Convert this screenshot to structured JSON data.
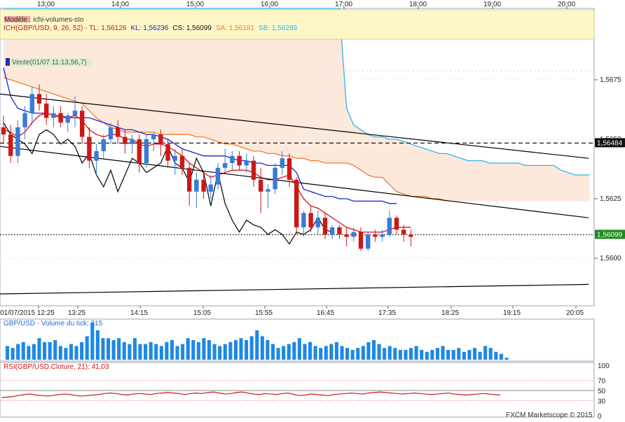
{
  "chart_data": {
    "type": "candlestick",
    "symbol": "GBP/USD",
    "top_time_labels": [
      "13:00",
      "14:00",
      "15:00",
      "16:00",
      "17:00",
      "18:00",
      "19:00",
      "20:00"
    ],
    "bottom_time_labels": [
      "01/07/2015 12:25",
      "13:25",
      "14:15",
      "15:05",
      "15:55",
      "16:45",
      "17:35",
      "18:25",
      "19:15",
      "20:05"
    ],
    "y_ticks": [
      "1,5675",
      "1,5650",
      "1,5625",
      "1,5600"
    ],
    "ylim": [
      1.558,
      1.5705
    ],
    "price_tags": {
      "level_high": "1,56484",
      "level_close": "1,56099"
    },
    "legend": {
      "model": "Modèle : ichi-volumes-sto",
      "ichi_prefix": "ICH(GBP/USD, 9, 26, 52) - ",
      "tl": "TL: 1,56126",
      "kl": "KL: 1,56236",
      "cs": "CS: 1,56099",
      "sa": "SA: 1,56181",
      "sb": "SB: 1,56289"
    },
    "vente_label": "Vente(01/07 11:13,56,7)",
    "candles": [
      {
        "o": 1.5655,
        "h": 1.566,
        "l": 1.5648,
        "c": 1.5652
      },
      {
        "o": 1.5652,
        "h": 1.5656,
        "l": 1.564,
        "c": 1.5643
      },
      {
        "o": 1.5643,
        "h": 1.5658,
        "l": 1.564,
        "c": 1.5655
      },
      {
        "o": 1.5655,
        "h": 1.5664,
        "l": 1.565,
        "c": 1.5661
      },
      {
        "o": 1.5661,
        "h": 1.5672,
        "l": 1.5656,
        "c": 1.5669
      },
      {
        "o": 1.5669,
        "h": 1.5673,
        "l": 1.5662,
        "c": 1.5665
      },
      {
        "o": 1.5665,
        "h": 1.5669,
        "l": 1.5656,
        "c": 1.5659
      },
      {
        "o": 1.5659,
        "h": 1.5664,
        "l": 1.5655,
        "c": 1.5661
      },
      {
        "o": 1.5661,
        "h": 1.5664,
        "l": 1.5655,
        "c": 1.5657
      },
      {
        "o": 1.5657,
        "h": 1.5661,
        "l": 1.5653,
        "c": 1.566
      },
      {
        "o": 1.566,
        "h": 1.5668,
        "l": 1.5655,
        "c": 1.5662
      },
      {
        "o": 1.5662,
        "h": 1.5664,
        "l": 1.5648,
        "c": 1.5651
      },
      {
        "o": 1.5651,
        "h": 1.5655,
        "l": 1.5638,
        "c": 1.5641
      },
      {
        "o": 1.5641,
        "h": 1.5648,
        "l": 1.5635,
        "c": 1.5645
      },
      {
        "o": 1.5645,
        "h": 1.5652,
        "l": 1.5642,
        "c": 1.565
      },
      {
        "o": 1.565,
        "h": 1.5657,
        "l": 1.5648,
        "c": 1.5655
      },
      {
        "o": 1.5655,
        "h": 1.5658,
        "l": 1.5648,
        "c": 1.5651
      },
      {
        "o": 1.5651,
        "h": 1.5654,
        "l": 1.5644,
        "c": 1.5648
      },
      {
        "o": 1.5648,
        "h": 1.5652,
        "l": 1.5644,
        "c": 1.565
      },
      {
        "o": 1.565,
        "h": 1.5652,
        "l": 1.5636,
        "c": 1.564
      },
      {
        "o": 1.564,
        "h": 1.5652,
        "l": 1.5638,
        "c": 1.565
      },
      {
        "o": 1.565,
        "h": 1.5653,
        "l": 1.5645,
        "c": 1.5652
      },
      {
        "o": 1.5652,
        "h": 1.5654,
        "l": 1.5643,
        "c": 1.5648
      },
      {
        "o": 1.5648,
        "h": 1.565,
        "l": 1.5638,
        "c": 1.5641
      },
      {
        "o": 1.5641,
        "h": 1.5646,
        "l": 1.5635,
        "c": 1.5643
      },
      {
        "o": 1.5643,
        "h": 1.5646,
        "l": 1.5635,
        "c": 1.5638
      },
      {
        "o": 1.5638,
        "h": 1.564,
        "l": 1.5622,
        "c": 1.5628
      },
      {
        "o": 1.5628,
        "h": 1.5636,
        "l": 1.5621,
        "c": 1.5633
      },
      {
        "o": 1.5633,
        "h": 1.5636,
        "l": 1.5625,
        "c": 1.5628
      },
      {
        "o": 1.5628,
        "h": 1.5635,
        "l": 1.5625,
        "c": 1.5631
      },
      {
        "o": 1.5631,
        "h": 1.564,
        "l": 1.5629,
        "c": 1.5638
      },
      {
        "o": 1.5638,
        "h": 1.5646,
        "l": 1.5636,
        "c": 1.564
      },
      {
        "o": 1.564,
        "h": 1.5645,
        "l": 1.5637,
        "c": 1.5643
      },
      {
        "o": 1.5643,
        "h": 1.5645,
        "l": 1.5637,
        "c": 1.5639
      },
      {
        "o": 1.5639,
        "h": 1.5644,
        "l": 1.5636,
        "c": 1.5641
      },
      {
        "o": 1.5641,
        "h": 1.5643,
        "l": 1.563,
        "c": 1.5633
      },
      {
        "o": 1.5633,
        "h": 1.5638,
        "l": 1.5619,
        "c": 1.5628
      },
      {
        "o": 1.5628,
        "h": 1.5631,
        "l": 1.5621,
        "c": 1.5629
      },
      {
        "o": 1.5629,
        "h": 1.564,
        "l": 1.5627,
        "c": 1.5638
      },
      {
        "o": 1.5638,
        "h": 1.5645,
        "l": 1.5635,
        "c": 1.5642
      },
      {
        "o": 1.5642,
        "h": 1.5644,
        "l": 1.563,
        "c": 1.5633
      },
      {
        "o": 1.5633,
        "h": 1.5634,
        "l": 1.561,
        "c": 1.5613
      },
      {
        "o": 1.5613,
        "h": 1.562,
        "l": 1.5609,
        "c": 1.5619
      },
      {
        "o": 1.5619,
        "h": 1.5622,
        "l": 1.5611,
        "c": 1.5613
      },
      {
        "o": 1.5613,
        "h": 1.562,
        "l": 1.561,
        "c": 1.5617
      },
      {
        "o": 1.5617,
        "h": 1.5619,
        "l": 1.5608,
        "c": 1.561
      },
      {
        "o": 1.561,
        "h": 1.5614,
        "l": 1.5608,
        "c": 1.5613
      },
      {
        "o": 1.5613,
        "h": 1.5614,
        "l": 1.5608,
        "c": 1.561
      },
      {
        "o": 1.561,
        "h": 1.5613,
        "l": 1.5605,
        "c": 1.5609
      },
      {
        "o": 1.5609,
        "h": 1.5613,
        "l": 1.5607,
        "c": 1.5611
      },
      {
        "o": 1.5611,
        "h": 1.5613,
        "l": 1.5603,
        "c": 1.5604
      },
      {
        "o": 1.5604,
        "h": 1.5611,
        "l": 1.5603,
        "c": 1.561
      },
      {
        "o": 1.561,
        "h": 1.5612,
        "l": 1.5607,
        "c": 1.5609
      },
      {
        "o": 1.5609,
        "h": 1.5612,
        "l": 1.5607,
        "c": 1.561
      },
      {
        "o": 1.561,
        "h": 1.562,
        "l": 1.5609,
        "c": 1.5617
      },
      {
        "o": 1.5617,
        "h": 1.5618,
        "l": 1.561,
        "c": 1.5612
      },
      {
        "o": 1.5612,
        "h": 1.5614,
        "l": 1.5607,
        "c": 1.561
      },
      {
        "o": 1.561,
        "h": 1.5612,
        "l": 1.5605,
        "c": 1.5609
      }
    ],
    "tenkan": [
      1.5654,
      1.5653,
      1.5651,
      1.5653,
      1.5657,
      1.566,
      1.5661,
      1.566,
      1.5659,
      1.5659,
      1.566,
      1.5658,
      1.5654,
      1.5652,
      1.5651,
      1.5652,
      1.5652,
      1.565,
      1.565,
      1.5648,
      1.5647,
      1.5648,
      1.5648,
      1.5647,
      1.5645,
      1.5643,
      1.564,
      1.5638,
      1.5636,
      1.5634,
      1.5635,
      1.5636,
      1.5637,
      1.5637,
      1.5637,
      1.5636,
      1.5634,
      1.5633,
      1.5633,
      1.5634,
      1.5635,
      1.563,
      1.5625,
      1.5622,
      1.5621,
      1.5619,
      1.5617,
      1.5615,
      1.5613,
      1.5612,
      1.5611,
      1.5611,
      1.5611,
      1.5611,
      1.5612,
      1.5613,
      1.5613,
      1.5613
    ],
    "kijun": [
      1.568,
      1.5668,
      1.5663,
      1.5662,
      1.5661,
      1.5661,
      1.5661,
      1.566,
      1.566,
      1.5659,
      1.5659,
      1.5659,
      1.5659,
      1.5658,
      1.5657,
      1.5656,
      1.5655,
      1.5654,
      1.5654,
      1.5653,
      1.5652,
      1.5652,
      1.5651,
      1.565,
      1.5648,
      1.5646,
      1.5645,
      1.5644,
      1.5643,
      1.5643,
      1.5643,
      1.5643,
      1.5642,
      1.5641,
      1.5641,
      1.564,
      1.564,
      1.5639,
      1.5639,
      1.5639,
      1.5639,
      1.5636,
      1.5629,
      1.5628,
      1.5627,
      1.5626,
      1.5626,
      1.5625,
      1.5625,
      1.5624,
      1.5624,
      1.5624,
      1.5624,
      1.5624,
      1.5623,
      1.5623
    ],
    "chikou": [
      1.5657,
      1.5652,
      1.565,
      1.5648,
      1.5644,
      1.5652,
      1.5654,
      1.5652,
      1.5648,
      1.565,
      1.5647,
      1.564,
      1.5644,
      1.5635,
      1.563,
      1.5637,
      1.5628,
      1.5635,
      1.5642,
      1.564,
      1.5636,
      1.5638,
      1.564,
      1.5647,
      1.564,
      1.5638,
      1.5632,
      1.5642,
      1.5636,
      1.5622,
      1.5636,
      1.5623,
      1.5616,
      1.5611,
      1.5616,
      1.5614,
      1.5613,
      1.561,
      1.5612,
      1.561,
      1.5606,
      1.5611,
      1.561,
      1.5612,
      1.5617,
      1.5612,
      1.5611
    ],
    "span_a": [
      1.5676,
      1.5675,
      1.5674,
      1.5673,
      1.5672,
      1.5671,
      1.567,
      1.5669,
      1.5668,
      1.5667,
      1.5666,
      1.5665,
      1.5662,
      1.5659,
      1.5657,
      1.5655,
      1.5654,
      1.5653,
      1.5653,
      1.5653,
      1.5653,
      1.5653,
      1.5652,
      1.5652,
      1.5652,
      1.5652,
      1.5652,
      1.5651,
      1.5651,
      1.565,
      1.5649,
      1.5648,
      1.5648,
      1.5647,
      1.5646,
      1.5645,
      1.5645,
      1.5644,
      1.5644,
      1.5643,
      1.5643,
      1.5642,
      1.5642,
      1.5641,
      1.5641,
      1.564,
      1.564,
      1.564,
      1.564,
      1.5639,
      1.5637,
      1.5635,
      1.5634,
      1.5634,
      1.5631,
      1.5628,
      1.5627,
      1.5626,
      1.5626,
      1.5626,
      1.5625,
      1.5625,
      1.5624
    ],
    "span_b": [
      1.5705,
      1.5705,
      1.5705,
      1.5705,
      1.5705,
      1.5705,
      1.5705,
      1.5705,
      1.5705,
      1.5705,
      1.5705,
      1.5705,
      1.5705,
      1.5705,
      1.5705,
      1.5705,
      1.5705,
      1.5705,
      1.5705,
      1.5705,
      1.5705,
      1.5705,
      1.5705,
      1.5705,
      1.5705,
      1.5705,
      1.5705,
      1.5705,
      1.5705,
      1.5705,
      1.5705,
      1.5705,
      1.5705,
      1.5705,
      1.5705,
      1.5705,
      1.5705,
      1.5705,
      1.5705,
      1.5705,
      1.5705,
      1.5705,
      1.5705,
      1.5705,
      1.5705,
      1.5705,
      1.5705,
      1.5705,
      1.5663,
      1.5656,
      1.5654,
      1.5652,
      1.5651,
      1.5651,
      1.565,
      1.565,
      1.5649,
      1.5648,
      1.5647,
      1.5646,
      1.5645,
      1.5644,
      1.5644,
      1.5643,
      1.5642,
      1.5641,
      1.5641,
      1.5641,
      1.564,
      1.564,
      1.564,
      1.564,
      1.564,
      1.5639,
      1.5639,
      1.5639,
      1.5639,
      1.5639,
      1.5637,
      1.5636,
      1.5635,
      1.5635,
      1.5635
    ],
    "trendlines": [
      {
        "name": "channel-upper",
        "x1": 0,
        "y1": 1.5669,
        "x2": 840,
        "y2": 1.5642
      },
      {
        "name": "channel-lower",
        "x1": 0,
        "y1": 1.5647,
        "x2": 840,
        "y2": 1.5617
      },
      {
        "name": "support",
        "x1": 0,
        "y1": 1.5585,
        "x2": 840,
        "y2": 1.5589
      }
    ],
    "hlines": [
      {
        "name": "resistance-dashed",
        "y": 1.56484,
        "style": "dashed"
      },
      {
        "name": "close-dotted",
        "y": 1.56099,
        "style": "dotted"
      }
    ],
    "volume": {
      "label": "GBP/USD - Volume du tick: 315",
      "values": [
        35,
        30,
        40,
        45,
        35,
        40,
        55,
        45,
        45,
        50,
        35,
        30,
        40,
        35,
        45,
        60,
        95,
        75,
        55,
        55,
        50,
        55,
        45,
        40,
        55,
        40,
        40,
        45,
        40,
        35,
        45,
        50,
        35,
        40,
        55,
        50,
        45,
        55,
        50,
        40,
        35,
        40,
        45,
        50,
        55,
        50,
        60,
        75,
        60,
        50,
        40,
        30,
        35,
        40,
        45,
        55,
        40,
        45,
        35,
        30,
        35,
        40,
        45,
        35,
        30,
        25,
        30,
        35,
        45,
        50,
        40,
        30,
        35,
        30,
        25,
        25,
        30,
        35,
        25,
        20,
        25,
        30,
        35,
        25,
        25,
        30,
        20,
        25,
        30,
        20,
        35,
        30,
        20,
        15,
        5
      ],
      "ylim": [
        0,
        100
      ]
    },
    "rsi": {
      "label": "RSI(GBP/USD.Cloture, 21): 41,03",
      "values": [
        36,
        37,
        38,
        40,
        42,
        43,
        41,
        40,
        39,
        40,
        42,
        43,
        42,
        40,
        39,
        40,
        41,
        42,
        44,
        45,
        44,
        42,
        41,
        43,
        44,
        43,
        42,
        44,
        45,
        46,
        45,
        44,
        42,
        44,
        45,
        44,
        46,
        47,
        45,
        43,
        44,
        46,
        47,
        45,
        43,
        42,
        44,
        43,
        42,
        44,
        45,
        42,
        40,
        41,
        43,
        42,
        41,
        40,
        42,
        43,
        44,
        45,
        44,
        43,
        45,
        46,
        47,
        46,
        45,
        44,
        43,
        44,
        45,
        44,
        43,
        42,
        43,
        44,
        45,
        43,
        42,
        41,
        42,
        43,
        44,
        43,
        42,
        41
      ],
      "ticks": [
        "100",
        "70",
        "50",
        "30",
        "0"
      ],
      "ylim": [
        0,
        100
      ]
    },
    "watermark": "FXCM Marketscope © 2015"
  },
  "colors": {
    "bull": "#3a7bd5",
    "bear": "#cc1818",
    "tenkan": "#e01010",
    "kijun": "#1a24d0",
    "chikou": "#111111",
    "span_a": "#f57a2a",
    "span_b": "#2fb6e8",
    "cloud": "#fde8dc",
    "legend_bg": "#fdf7c8",
    "volume": "#1e88e5"
  }
}
